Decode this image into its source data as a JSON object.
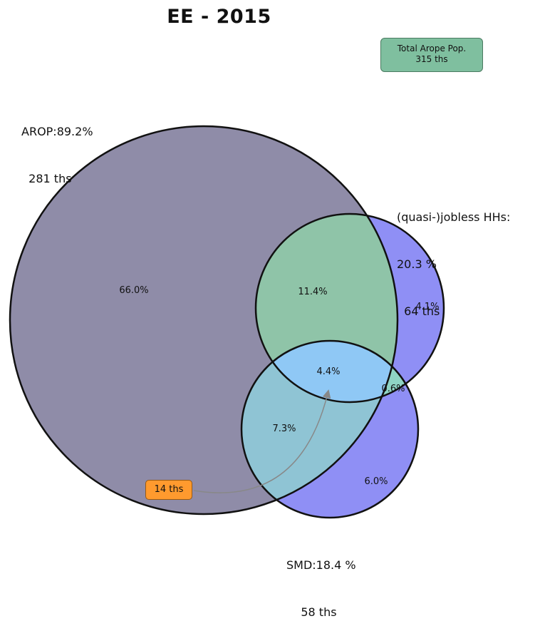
{
  "title": "EE - 2015",
  "total_box": {
    "line1": "Total Arope Pop.",
    "line2": "315 ths"
  },
  "chart_data": {
    "type": "venn",
    "sets": [
      {
        "key": "arop",
        "line1": "AROP:89.2%",
        "line2": "  281 ths",
        "color": "#8f8ca8"
      },
      {
        "key": "jobless",
        "line1": "(quasi-)jobless HHs:",
        "line2": "20.3 %",
        "line3": "  64 ths",
        "color": "#8f8ff5"
      },
      {
        "key": "smd",
        "line1": "SMD:18.4 %",
        "line2": "    58 ths",
        "color": "#8f8ff5"
      }
    ],
    "regions": [
      {
        "key": "arop_only",
        "label": "66.0%",
        "value": 66.0
      },
      {
        "key": "arop_jobless",
        "label": "11.4%",
        "value": 11.4
      },
      {
        "key": "jobless_only",
        "label": "4.1%",
        "value": 4.1
      },
      {
        "key": "all_three",
        "label": "4.4%",
        "value": 4.4
      },
      {
        "key": "jobless_smd",
        "label": "0.6%",
        "value": 0.6
      },
      {
        "key": "arop_smd",
        "label": "7.3%",
        "value": 7.3
      },
      {
        "key": "smd_only",
        "label": "6.0%",
        "value": 6.0
      }
    ],
    "annotation": {
      "label": "14 ths",
      "points_to": "all_three"
    },
    "colors": {
      "intersection_arop_jobless": "#8fc4a8",
      "intersection_arop_smd": "#8fc4d4",
      "intersection_all": "#8fc8f5",
      "jobless_smd": "#8fd4c4",
      "annotation_box": "#ff9a2e",
      "total_box": "#7fbf9f"
    }
  }
}
